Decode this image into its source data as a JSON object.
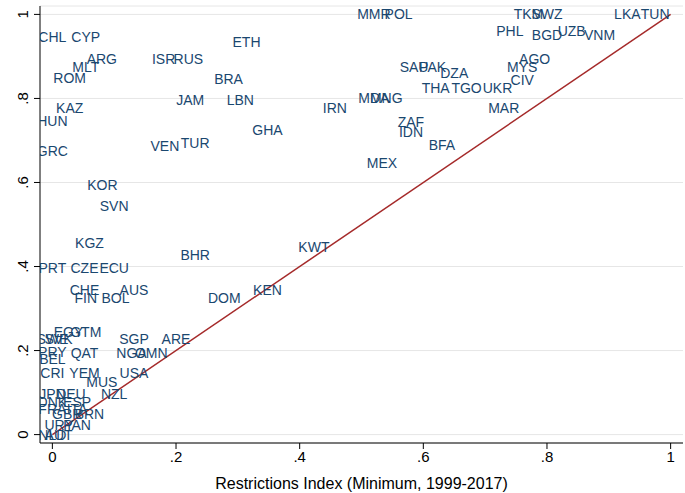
{
  "chart_data": {
    "type": "scatter",
    "x_label": "Restrictions Index (Minimum, 1999-2017)",
    "xlim": [
      -0.02,
      1.02
    ],
    "ylim": [
      -0.02,
      1.02
    ],
    "xticks": [
      0,
      {
        "value": 0.2,
        "label": ".2"
      },
      {
        "value": 0.4,
        "label": ".4"
      },
      {
        "value": 0.6,
        "label": ".6"
      },
      {
        "value": 0.8,
        "label": ".8"
      },
      1
    ],
    "yticks": [
      0,
      {
        "value": 0.2,
        "label": ".2"
      },
      {
        "value": 0.4,
        "label": ".4"
      },
      {
        "value": 0.6,
        "label": ".6"
      },
      {
        "value": 0.8,
        "label": ".8"
      },
      1
    ],
    "grid": true,
    "color": "#1a476f",
    "points": [
      {
        "label": "CHL",
        "x": 0,
        "y": 0.947
      },
      {
        "label": "CYP",
        "x": 0.054,
        "y": 0.947
      },
      {
        "label": "ARG",
        "x": 0.08,
        "y": 0.895
      },
      {
        "label": "MLT",
        "x": 0.054,
        "y": 0.875
      },
      {
        "label": "ROM",
        "x": 0.028,
        "y": 0.849
      },
      {
        "label": "ISR",
        "x": 0.18,
        "y": 0.895
      },
      {
        "label": "RUS",
        "x": 0.22,
        "y": 0.895
      },
      {
        "label": "ETH",
        "x": 0.314,
        "y": 0.935
      },
      {
        "label": "BRA",
        "x": 0.285,
        "y": 0.847
      },
      {
        "label": "JAM",
        "x": 0.223,
        "y": 0.796
      },
      {
        "label": "LBN",
        "x": 0.304,
        "y": 0.796
      },
      {
        "label": "KAZ",
        "x": 0.028,
        "y": 0.777
      },
      {
        "label": "HUN",
        "x": 0,
        "y": 0.746
      },
      {
        "label": "GHA",
        "x": 0.348,
        "y": 0.724
      },
      {
        "label": "GRC",
        "x": 0,
        "y": 0.676
      },
      {
        "label": "VEN",
        "x": 0.182,
        "y": 0.686
      },
      {
        "label": "TUR",
        "x": 0.231,
        "y": 0.695
      },
      {
        "label": "KOR",
        "x": 0.081,
        "y": 0.595
      },
      {
        "label": "SVN",
        "x": 0.1,
        "y": 0.544
      },
      {
        "label": "KGZ",
        "x": 0.06,
        "y": 0.456
      },
      {
        "label": "KWT",
        "x": 0.423,
        "y": 0.446
      },
      {
        "label": "BHR",
        "x": 0.231,
        "y": 0.427
      },
      {
        "label": "PRT",
        "x": 0,
        "y": 0.396
      },
      {
        "label": "CZE",
        "x": 0.052,
        "y": 0.396
      },
      {
        "label": "ECU",
        "x": 0.1,
        "y": 0.396
      },
      {
        "label": "CHE",
        "x": 0.052,
        "y": 0.345
      },
      {
        "label": "AUS",
        "x": 0.132,
        "y": 0.345
      },
      {
        "label": "KEN",
        "x": 0.348,
        "y": 0.345
      },
      {
        "label": "FIN",
        "x": 0.054,
        "y": 0.326
      },
      {
        "label": "BOL",
        "x": 0.102,
        "y": 0.326
      },
      {
        "label": "DOM",
        "x": 0.278,
        "y": 0.326
      },
      {
        "label": "EGY",
        "x": 0.026,
        "y": 0.245
      },
      {
        "label": "GTM",
        "x": 0.054,
        "y": 0.245
      },
      {
        "label": "SWE",
        "x": 0,
        "y": 0.228
      },
      {
        "label": "SVK",
        "x": 0.01,
        "y": 0.228
      },
      {
        "label": "SGP",
        "x": 0.132,
        "y": 0.228
      },
      {
        "label": "ARE",
        "x": 0.2,
        "y": 0.228
      },
      {
        "label": "PRY",
        "x": 0,
        "y": 0.197
      },
      {
        "label": "BEL",
        "x": 0,
        "y": 0.18
      },
      {
        "label": "QAT",
        "x": 0.052,
        "y": 0.194
      },
      {
        "label": "NGA",
        "x": 0.128,
        "y": 0.194
      },
      {
        "label": "OMN",
        "x": 0.16,
        "y": 0.194
      },
      {
        "label": "CRI",
        "x": 0,
        "y": 0.146
      },
      {
        "label": "YEM",
        "x": 0.052,
        "y": 0.146
      },
      {
        "label": "USA",
        "x": 0.132,
        "y": 0.146
      },
      {
        "label": "MUS",
        "x": 0.08,
        "y": 0.125
      },
      {
        "label": "NZL",
        "x": 0.1,
        "y": 0.096
      },
      {
        "label": "JPN",
        "x": 0,
        "y": 0.096
      },
      {
        "label": "DEU",
        "x": 0.03,
        "y": 0.096
      },
      {
        "label": "DNK",
        "x": 0,
        "y": 0.077
      },
      {
        "label": "ESP",
        "x": 0.04,
        "y": 0.077
      },
      {
        "label": "FRA",
        "x": 0,
        "y": 0.06
      },
      {
        "label": "ITA",
        "x": 0.04,
        "y": 0.06
      },
      {
        "label": "GBR",
        "x": 0.024,
        "y": 0.048
      },
      {
        "label": "BRN",
        "x": 0.06,
        "y": 0.048
      },
      {
        "label": "URY",
        "x": 0.011,
        "y": 0.024
      },
      {
        "label": "PAN",
        "x": 0.04,
        "y": 0.024
      },
      {
        "label": "NLD",
        "x": 0,
        "y": 0
      },
      {
        "label": "AUT",
        "x": 0.01,
        "y": 0
      },
      {
        "label": "IRN",
        "x": 0.457,
        "y": 0.777
      },
      {
        "label": "MEX",
        "x": 0.533,
        "y": 0.647
      },
      {
        "label": "MDA",
        "x": 0.52,
        "y": 0.8
      },
      {
        "label": "MNG",
        "x": 0.54,
        "y": 0.8
      },
      {
        "label": "ZAF",
        "x": 0.58,
        "y": 0.745
      },
      {
        "label": "IDN",
        "x": 0.58,
        "y": 0.72
      },
      {
        "label": "BFA",
        "x": 0.63,
        "y": 0.69
      },
      {
        "label": "SAU",
        "x": 0.585,
        "y": 0.875
      },
      {
        "label": "PAK",
        "x": 0.615,
        "y": 0.875
      },
      {
        "label": "DZA",
        "x": 0.65,
        "y": 0.86
      },
      {
        "label": "THA",
        "x": 0.62,
        "y": 0.826
      },
      {
        "label": "TGO",
        "x": 0.67,
        "y": 0.826
      },
      {
        "label": "UKR",
        "x": 0.72,
        "y": 0.826
      },
      {
        "label": "MAR",
        "x": 0.73,
        "y": 0.777
      },
      {
        "label": "MYS",
        "x": 0.76,
        "y": 0.875
      },
      {
        "label": "AGO",
        "x": 0.78,
        "y": 0.895
      },
      {
        "label": "CIV",
        "x": 0.76,
        "y": 0.845
      },
      {
        "label": "MMR",
        "x": 0.52,
        "y": 1
      },
      {
        "label": "POL",
        "x": 0.56,
        "y": 1
      },
      {
        "label": "PHL",
        "x": 0.74,
        "y": 0.96
      },
      {
        "label": "TKM",
        "x": 0.77,
        "y": 1
      },
      {
        "label": "SWZ",
        "x": 0.8,
        "y": 1
      },
      {
        "label": "BGD",
        "x": 0.8,
        "y": 0.95
      },
      {
        "label": "UZB",
        "x": 0.84,
        "y": 0.96
      },
      {
        "label": "VNM",
        "x": 0.885,
        "y": 0.95
      },
      {
        "label": "LKA",
        "x": 0.93,
        "y": 1
      },
      {
        "label": "TUN",
        "x": 0.975,
        "y": 1
      }
    ],
    "line": {
      "x": [
        0,
        1
      ],
      "y": [
        0,
        1
      ],
      "color": "#a52a2a"
    }
  }
}
